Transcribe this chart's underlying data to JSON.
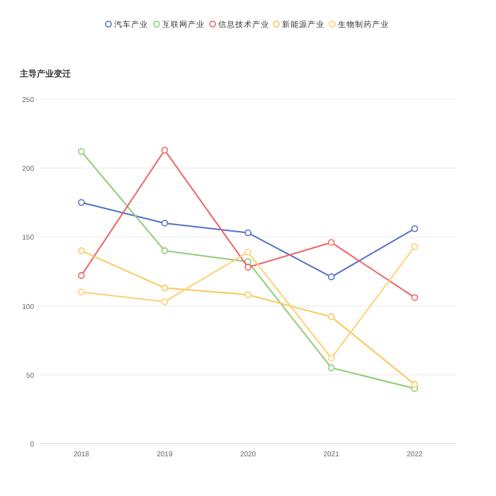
{
  "chart_data": {
    "type": "line",
    "title": "主导产业变迁",
    "categories": [
      "2018",
      "2019",
      "2020",
      "2021",
      "2022"
    ],
    "series": [
      {
        "name": "汽车产业",
        "color": "#5470c6",
        "values": [
          175,
          160,
          153,
          121,
          156
        ]
      },
      {
        "name": "互联网产业",
        "color": "#91cc75",
        "values": [
          212,
          140,
          132,
          55,
          40
        ]
      },
      {
        "name": "信息技术产业",
        "color": "#ee6666",
        "values": [
          122,
          213,
          128,
          146,
          106
        ]
      },
      {
        "name": "新能源产业",
        "color": "#fac858",
        "values": [
          140,
          113,
          108,
          92,
          43
        ]
      },
      {
        "name": "生物制药产业",
        "color": "#ffd073",
        "values": [
          110,
          103,
          139,
          62,
          143
        ]
      }
    ],
    "ylim": [
      0,
      250
    ],
    "yticks": [
      0,
      50,
      100,
      150,
      200,
      250
    ],
    "grid": "y",
    "legend": "top",
    "marker": "circle",
    "line_style": "solid"
  }
}
